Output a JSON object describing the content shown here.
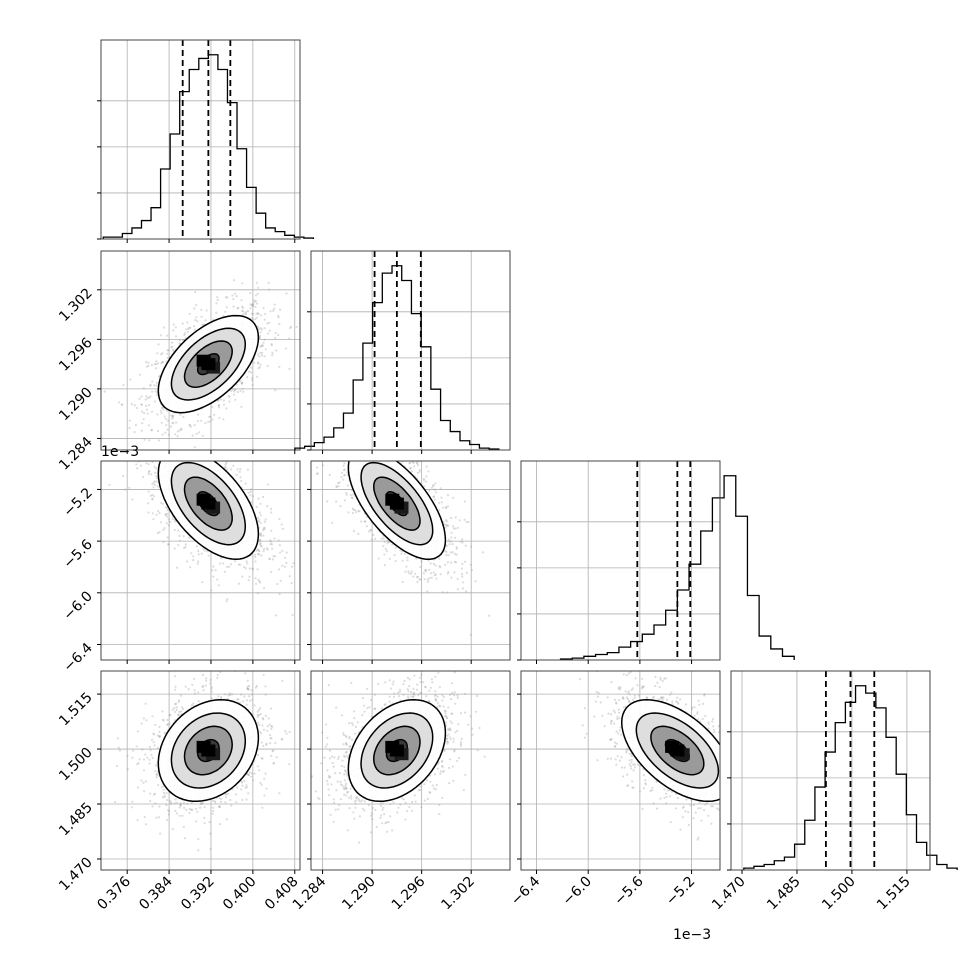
{
  "chart_data": {
    "type": "corner",
    "colors": {
      "line": "#000000",
      "grid": "#b0b0b0",
      "scatter": "#9a9a9a",
      "density": "#000000"
    },
    "grid": true,
    "params": [
      {
        "range": [
          0.371,
          0.409
        ],
        "ticks": [
          0.376,
          0.384,
          0.392,
          0.4,
          0.408
        ],
        "tick_labels": [
          "0.376",
          "0.384",
          "0.392",
          "0.400",
          "0.408"
        ],
        "offset": "",
        "quantiles": [
          0.3866,
          0.3915,
          0.3957
        ],
        "hist": [
          0.01,
          0.01,
          0.03,
          0.06,
          0.1,
          0.17,
          0.38,
          0.57,
          0.8,
          0.92,
          0.98,
          1.0,
          0.92,
          0.74,
          0.49,
          0.28,
          0.14,
          0.06,
          0.04,
          0.02,
          0.01,
          0.005
        ]
      },
      {
        "range": [
          1.2826,
          1.3067
        ],
        "ticks": [
          1.284,
          1.29,
          1.296,
          1.302
        ],
        "tick_labels": [
          "1.284",
          "1.290",
          "1.296",
          "1.302"
        ],
        "offset": "",
        "quantiles": [
          1.2903,
          1.293,
          1.2959
        ],
        "hist": [
          0.01,
          0.02,
          0.04,
          0.07,
          0.12,
          0.2,
          0.38,
          0.58,
          0.8,
          0.96,
          1.0,
          0.92,
          0.74,
          0.56,
          0.33,
          0.16,
          0.1,
          0.05,
          0.03,
          0.01,
          0.005
        ]
      },
      {
        "range": [
          -6.52,
          -4.98
        ],
        "ticks": [
          -6.4,
          -6.0,
          -5.6,
          -5.2
        ],
        "tick_labels": [
          "−6.4",
          "−6.0",
          "−5.6",
          "−5.2"
        ],
        "offset": "1e−3",
        "quantiles": [
          -5.62,
          -5.31,
          -5.21
        ],
        "hist": [
          0.005,
          0.01,
          0.02,
          0.03,
          0.04,
          0.07,
          0.1,
          0.14,
          0.19,
          0.27,
          0.38,
          0.52,
          0.7,
          0.88,
          1.0,
          0.78,
          0.35,
          0.13,
          0.06,
          0.02
        ]
      },
      {
        "range": [
          1.467,
          1.5213
        ],
        "ticks": [
          1.47,
          1.485,
          1.5,
          1.515
        ],
        "tick_labels": [
          "1.470",
          "1.485",
          "1.500",
          "1.515"
        ],
        "offset": "",
        "quantiles": [
          1.4929,
          1.4996,
          1.5061
        ],
        "hist": [
          0.01,
          0.02,
          0.03,
          0.05,
          0.07,
          0.14,
          0.27,
          0.45,
          0.64,
          0.8,
          0.91,
          1.0,
          0.96,
          0.88,
          0.72,
          0.52,
          0.3,
          0.15,
          0.08,
          0.03,
          0.01
        ]
      }
    ],
    "correlations": [
      [
        1.0,
        0.55,
        -0.55,
        0.25
      ],
      [
        0.55,
        1.0,
        -0.65,
        0.35
      ],
      [
        -0.55,
        -0.65,
        1.0,
        -0.55
      ],
      [
        0.25,
        0.35,
        -0.55,
        1.0
      ]
    ],
    "offset_labels": [
      "1e−3",
      "1e−3"
    ]
  }
}
